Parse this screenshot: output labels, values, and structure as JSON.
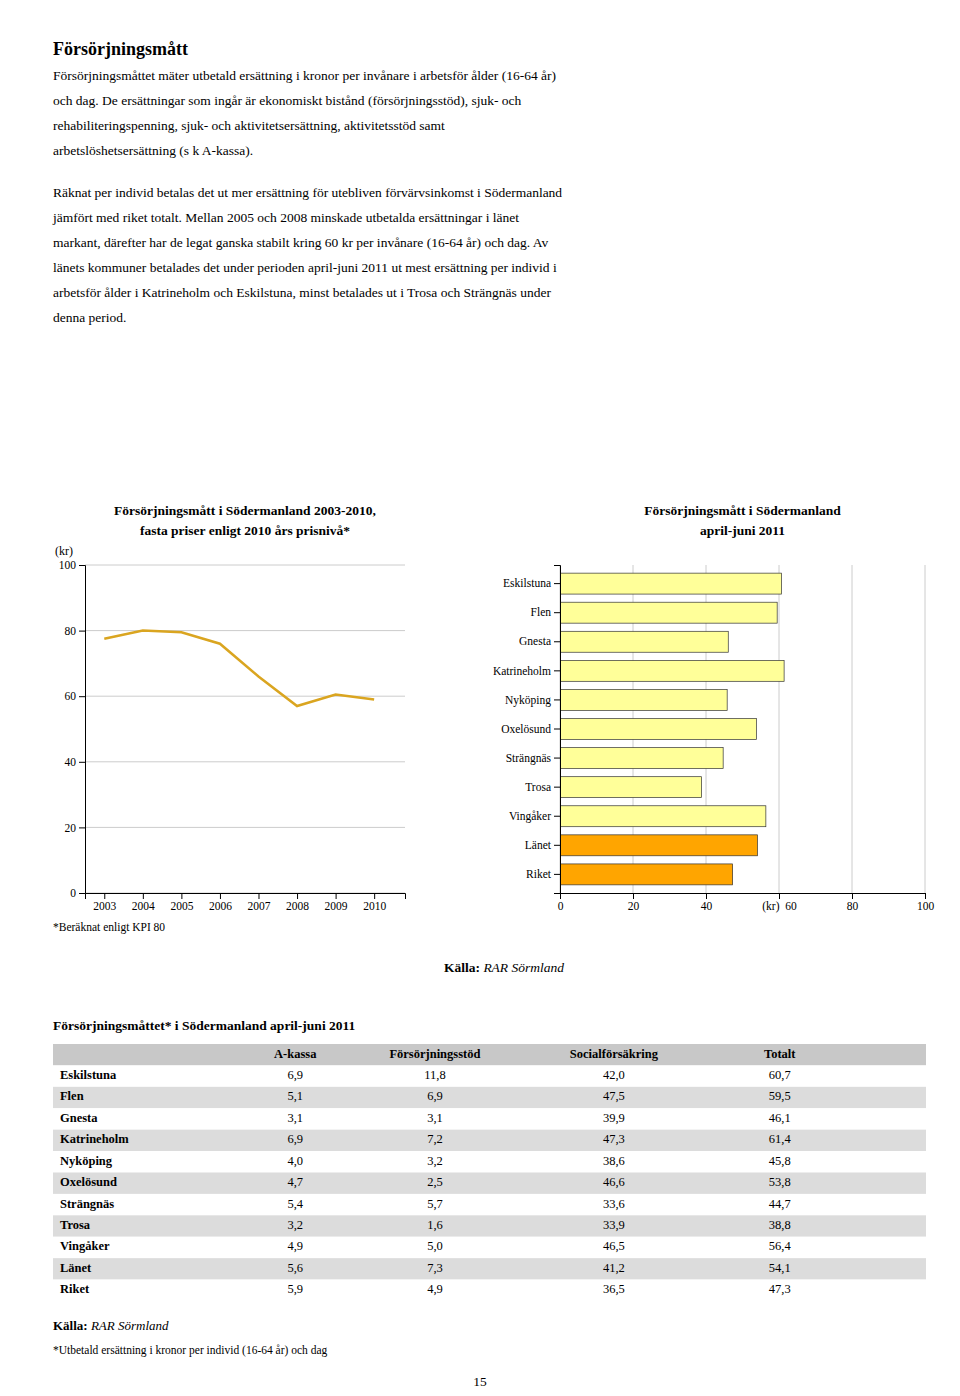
{
  "title": "Försörjningsmått",
  "paragraphs": [
    [
      "Försörjningsmåttet mäter utbetald ersättning i kronor per invånare i arbetsför ålder (16-64 år)",
      "och dag. De ersättningar som ingår är ekonomiskt bistånd (försörjningsstöd), sjuk- och",
      "rehabiliteringspenning, sjuk- och aktivitetsersättning, aktivitetsstöd samt",
      "arbetslöshetsersättning (s k A-kassa)."
    ],
    [
      "Räknat per individ betalas det ut mer ersättning för utebliven förvärvsinkomst i Södermanland",
      "jämfört med riket totalt. Mellan 2005 och 2008 minskade utbetalda ersättningar i länet",
      "markant, därefter har de legat ganska stabilt kring 60 kr per invånare (16-64 år) och dag. Av",
      "länets kommuner betalades det under perioden april-juni 2011 ut mest ersättning per individ i",
      "arbetsför ålder i Katrineholm och Eskilstuna, minst betalades ut i Trosa och Strängnäs under",
      "denna period."
    ]
  ],
  "chart_data": [
    {
      "type": "line",
      "title": "Försörjningsmått i Södermanland 2003-2010,",
      "subtitle": "fasta priser enligt 2010 års prisnivå*",
      "x": [
        2003,
        2004,
        2005,
        2006,
        2007,
        2008,
        2009,
        2010
      ],
      "values": [
        77.5,
        80.0,
        79.5,
        76.0,
        66.0,
        57.0,
        60.5,
        59.0
      ],
      "color": "#DAA520",
      "xlim": [
        2002.5,
        2010.8
      ],
      "xticks": [
        2003,
        2004,
        2005,
        2006,
        2007,
        2008,
        2009,
        2010
      ],
      "ylim": [
        0,
        100
      ],
      "yticks": [
        0,
        20,
        40,
        60,
        80,
        100
      ],
      "grid": true,
      "y_label": "(kr)",
      "note": "*Beräknat enligt KPI 80"
    },
    {
      "type": "bar",
      "title": "Försörjningsmått i Södermanland",
      "subtitle": "april-juni 2011",
      "orientation": "horizontal",
      "categories": [
        "Eskilstuna",
        "Flen",
        "Gnesta",
        "Katrineholm",
        "Nyköping",
        "Oxelösund",
        "Strängnäs",
        "Trosa",
        "Vingåker",
        "Länet",
        "Riket"
      ],
      "values": [
        60.7,
        59.5,
        46.1,
        61.4,
        45.8,
        53.8,
        44.7,
        38.8,
        56.4,
        54.1,
        47.3
      ],
      "colors": [
        "#FFFF99",
        "#FFFF99",
        "#FFFF99",
        "#FFFF99",
        "#FFFF99",
        "#FFFF99",
        "#FFFF99",
        "#FFFF99",
        "#FFFF99",
        "#FFA500",
        "#FFA500"
      ],
      "xlim": [
        0,
        100
      ],
      "xticks": [
        0,
        20,
        40,
        {
          "value": 60,
          "label": "(kr)  60"
        },
        80,
        100
      ],
      "grid": true
    }
  ],
  "source": {
    "bold": "Källa:",
    "italic": " RAR Sörmland"
  },
  "table": {
    "title": "Försörjningsmåttet* i Södermanland april-juni 2011",
    "headers": [
      "A-kassa",
      "Försörjningsstöd",
      "Socialförsäkring",
      "Totalt"
    ],
    "rows": [
      [
        "Eskilstuna",
        "6,9",
        "11,8",
        "42,0",
        "60,7"
      ],
      [
        "Flen",
        "5,1",
        "6,9",
        "47,5",
        "59,5"
      ],
      [
        "Gnesta",
        "3,1",
        "3,1",
        "39,9",
        "46,1"
      ],
      [
        "Katrineholm",
        "6,9",
        "7,2",
        "47,3",
        "61,4"
      ],
      [
        "Nyköping",
        "4,0",
        "3,2",
        "38,6",
        "45,8"
      ],
      [
        "Oxelösund",
        "4,7",
        "2,5",
        "46,6",
        "53,8"
      ],
      [
        "Strängnäs",
        "5,4",
        "5,7",
        "33,6",
        "44,7"
      ],
      [
        "Trosa",
        "3,2",
        "1,6",
        "33,9",
        "38,8"
      ],
      [
        "Vingåker",
        "4,9",
        "5,0",
        "46,5",
        "56,4"
      ],
      [
        "Länet",
        "5,6",
        "7,3",
        "41,2",
        "54,1"
      ],
      [
        "Riket",
        "5,9",
        "4,9",
        "36,5",
        "47,3"
      ]
    ]
  },
  "footnote": "*Utbetald ersättning i kronor per individ (16-64 år) och dag",
  "page_number": "15"
}
